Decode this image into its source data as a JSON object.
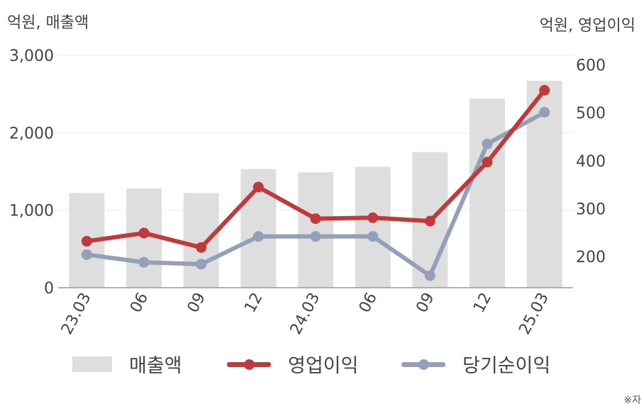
{
  "chart_data": {
    "type": "bar-line-combo",
    "categories": [
      "23.03",
      "06",
      "09",
      "12",
      "24.03",
      "06",
      "09",
      "12",
      "25.03"
    ],
    "y_left": {
      "label": "억원, 매출액",
      "range": [
        0,
        3000
      ],
      "ticks": [
        0,
        1000,
        2000,
        3000
      ],
      "tick_labels": [
        "0",
        "1,000",
        "2,000",
        "3,000"
      ]
    },
    "y_right": {
      "label": "억원, 영업이익",
      "range": [
        135,
        620
      ],
      "ticks": [
        200,
        300,
        400,
        500,
        600
      ],
      "tick_labels": [
        "200",
        "300",
        "400",
        "500",
        "600"
      ]
    },
    "series": [
      {
        "name": "매출액",
        "type": "bar",
        "axis": "left",
        "color": "#dedede",
        "values": [
          1220,
          1280,
          1220,
          1530,
          1490,
          1560,
          1750,
          2440,
          2670
        ]
      },
      {
        "name": "영업이익",
        "type": "line",
        "axis": "right",
        "color": "#c0393b",
        "values": [
          232,
          249,
          219,
          345,
          279,
          281,
          274,
          397,
          547
        ]
      },
      {
        "name": "당기순이익",
        "type": "line",
        "axis": "right",
        "color": "#93a0b8",
        "values": [
          204,
          188,
          184,
          242,
          242,
          242,
          160,
          435,
          501
        ]
      }
    ],
    "grid": true,
    "legend_position": "bottom"
  },
  "footnote": "※자"
}
